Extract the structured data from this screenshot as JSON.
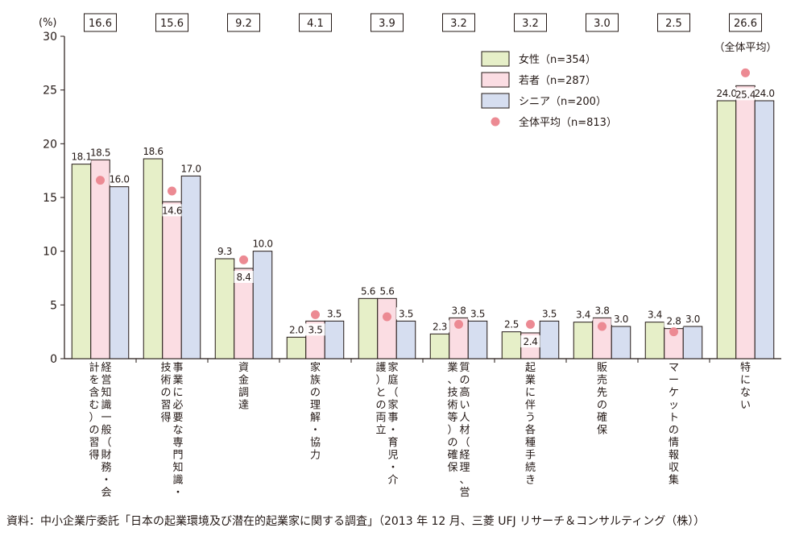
{
  "colors": {
    "female": "#e6efc8",
    "young": "#fbdde3",
    "senior": "#d6def0",
    "average": "#ec8a93",
    "axis": "#231815"
  },
  "chart_data": {
    "type": "bar",
    "unit_label": "(%)",
    "ylim": [
      0,
      30
    ],
    "yticks": [
      0,
      5,
      10,
      15,
      20,
      25,
      30
    ],
    "grid": false,
    "legend_position": "top-right",
    "categories": [
      [
        "経営知識一般（財務・会",
        "計を含む）の習得"
      ],
      [
        "事業に必要な専門知識・",
        "技術の習得"
      ],
      [
        "資金調達"
      ],
      [
        "家族の理解・協力"
      ],
      [
        "家庭（家事・育児・介",
        "護）との両立"
      ],
      [
        "質の高い人材（経理、営",
        "業、技術等）の確保"
      ],
      [
        "起業に伴う各種手続き"
      ],
      [
        "販売先の確保"
      ],
      [
        "マーケットの情報収集"
      ],
      [
        "特にない"
      ]
    ],
    "series": [
      {
        "name": "女性（n=354）",
        "color_key": "female",
        "values": [
          18.1,
          18.6,
          9.3,
          2.0,
          5.6,
          2.3,
          2.5,
          3.4,
          3.4,
          24.0
        ]
      },
      {
        "name": "若者（n=287）",
        "color_key": "young",
        "values": [
          18.5,
          14.6,
          8.4,
          3.5,
          5.6,
          3.8,
          2.4,
          3.8,
          2.8,
          25.4
        ]
      },
      {
        "name": "シニア（n=200）",
        "color_key": "senior",
        "values": [
          16.0,
          17.0,
          10.0,
          3.5,
          3.5,
          3.5,
          3.5,
          3.0,
          3.0,
          24.0
        ]
      }
    ],
    "average": {
      "name": "全体平均（n=813）",
      "values": [
        16.6,
        15.6,
        9.2,
        4.1,
        3.9,
        3.2,
        3.2,
        3.0,
        2.5,
        26.6
      ],
      "labels": [
        "16.6",
        "15.6",
        "9.2",
        "4.1",
        "3.9",
        "3.2",
        "3.2",
        "3.0",
        "2.5",
        "26.6"
      ],
      "note": "（全体平均）"
    },
    "value_labels": [
      [
        "18.1",
        "18.6",
        "9.3",
        "2.0",
        "5.6",
        "2.3",
        "2.5",
        "3.4",
        "3.4",
        "24.0"
      ],
      [
        "18.5",
        "14.6",
        "8.4",
        "3.5",
        "5.6",
        "3.8",
        "2.4",
        "3.8",
        "2.8",
        "25.4"
      ],
      [
        "16.0",
        "17.0",
        "10.0",
        "3.5",
        "3.5",
        "3.5",
        "3.5",
        "3.0",
        "3.0",
        "24.0"
      ]
    ]
  },
  "source": "資料：中小企業庁委託「日本の起業環境及び潜在的起業家に関する調査」（2013 年 12 月、三菱 UFJ リサーチ＆コンサルティング（株））"
}
